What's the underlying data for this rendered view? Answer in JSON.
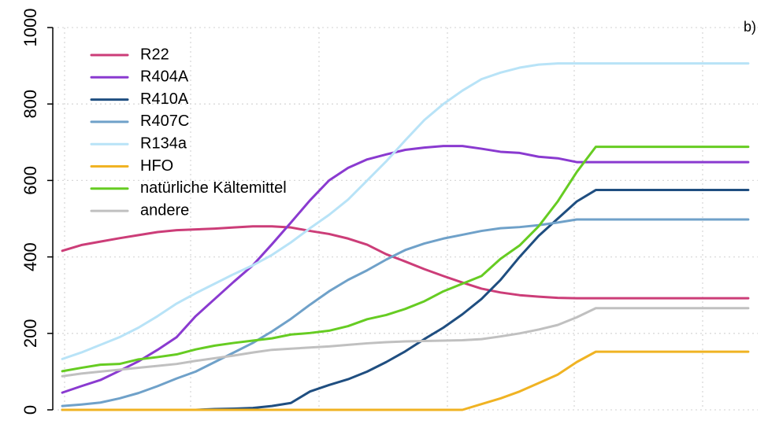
{
  "chart_data": {
    "type": "line",
    "panel_label": "b)",
    "grid": true,
    "legend_position": "top-left",
    "x": [
      1,
      2,
      3,
      4,
      5,
      6,
      7,
      8,
      9,
      10,
      11,
      12,
      13,
      14,
      15,
      16,
      17,
      18,
      19,
      20,
      21,
      22,
      23,
      24,
      25,
      26,
      27,
      28,
      29,
      30,
      31,
      32,
      33,
      34,
      35,
      36,
      37
    ],
    "xlim": [
      0.5,
      37.5
    ],
    "ylim": [
      0,
      1000
    ],
    "y_ticks": [
      0,
      200,
      400,
      600,
      800,
      1000
    ],
    "series": [
      {
        "name": "R22",
        "color": "#cc3d78",
        "values": [
          416,
          431,
          440,
          449,
          457,
          465,
          470,
          472,
          474,
          477,
          480,
          480,
          477,
          468,
          460,
          448,
          432,
          407,
          388,
          368,
          350,
          333,
          317,
          307,
          300,
          296,
          293,
          292,
          292,
          292,
          292,
          292,
          292,
          292,
          292,
          292,
          292
        ]
      },
      {
        "name": "R404A",
        "color": "#8a3ad0",
        "values": [
          45,
          62,
          78,
          102,
          127,
          157,
          190,
          245,
          290,
          335,
          378,
          433,
          490,
          548,
          600,
          633,
          655,
          668,
          680,
          686,
          690,
          690,
          683,
          675,
          672,
          662,
          658,
          648,
          648,
          648,
          648,
          648,
          648,
          648,
          648,
          648,
          648
        ]
      },
      {
        "name": "R410A",
        "color": "#1f4e80",
        "values": [
          0,
          0,
          0,
          0,
          0,
          0,
          0,
          0,
          2,
          3,
          5,
          10,
          18,
          48,
          65,
          80,
          100,
          125,
          153,
          185,
          215,
          250,
          290,
          340,
          400,
          455,
          500,
          545,
          575,
          575,
          575,
          575,
          575,
          575,
          575,
          575,
          575
        ]
      },
      {
        "name": "R407C",
        "color": "#6fa1c9",
        "values": [
          10,
          14,
          19,
          30,
          44,
          62,
          82,
          100,
          125,
          150,
          175,
          205,
          238,
          275,
          310,
          340,
          365,
          393,
          418,
          435,
          448,
          458,
          468,
          475,
          478,
          483,
          490,
          498,
          498,
          498,
          498,
          498,
          498,
          498,
          498,
          498,
          498
        ]
      },
      {
        "name": "R134a",
        "color": "#b8e3f7",
        "values": [
          133,
          150,
          170,
          190,
          215,
          245,
          278,
          305,
          330,
          355,
          378,
          405,
          438,
          475,
          510,
          550,
          600,
          650,
          705,
          758,
          800,
          835,
          865,
          882,
          895,
          903,
          906,
          906,
          906,
          906,
          906,
          906,
          906,
          906,
          906,
          906,
          906
        ]
      },
      {
        "name": "HFO",
        "color": "#f0b323",
        "values": [
          0,
          0,
          0,
          0,
          0,
          0,
          0,
          0,
          0,
          0,
          0,
          0,
          0,
          0,
          0,
          0,
          0,
          0,
          0,
          0,
          0,
          0,
          15,
          30,
          48,
          70,
          92,
          125,
          152,
          152,
          152,
          152,
          152,
          152,
          152,
          152,
          152
        ]
      },
      {
        "name": "natürliche Kältemittel",
        "color": "#66cc22",
        "values": [
          101,
          110,
          118,
          120,
          132,
          138,
          145,
          158,
          168,
          175,
          181,
          187,
          197,
          201,
          207,
          219,
          237,
          248,
          264,
          284,
          310,
          330,
          350,
          395,
          430,
          480,
          545,
          622,
          688,
          688,
          688,
          688,
          688,
          688,
          688,
          688,
          688
        ]
      },
      {
        "name": "andere",
        "color": "#c0c0c0",
        "values": [
          88,
          95,
          100,
          105,
          110,
          115,
          120,
          128,
          135,
          142,
          150,
          157,
          160,
          163,
          166,
          170,
          174,
          177,
          179,
          180,
          181,
          182,
          185,
          192,
          200,
          210,
          222,
          242,
          266,
          266,
          266,
          266,
          266,
          266,
          266,
          266,
          266
        ]
      }
    ]
  }
}
